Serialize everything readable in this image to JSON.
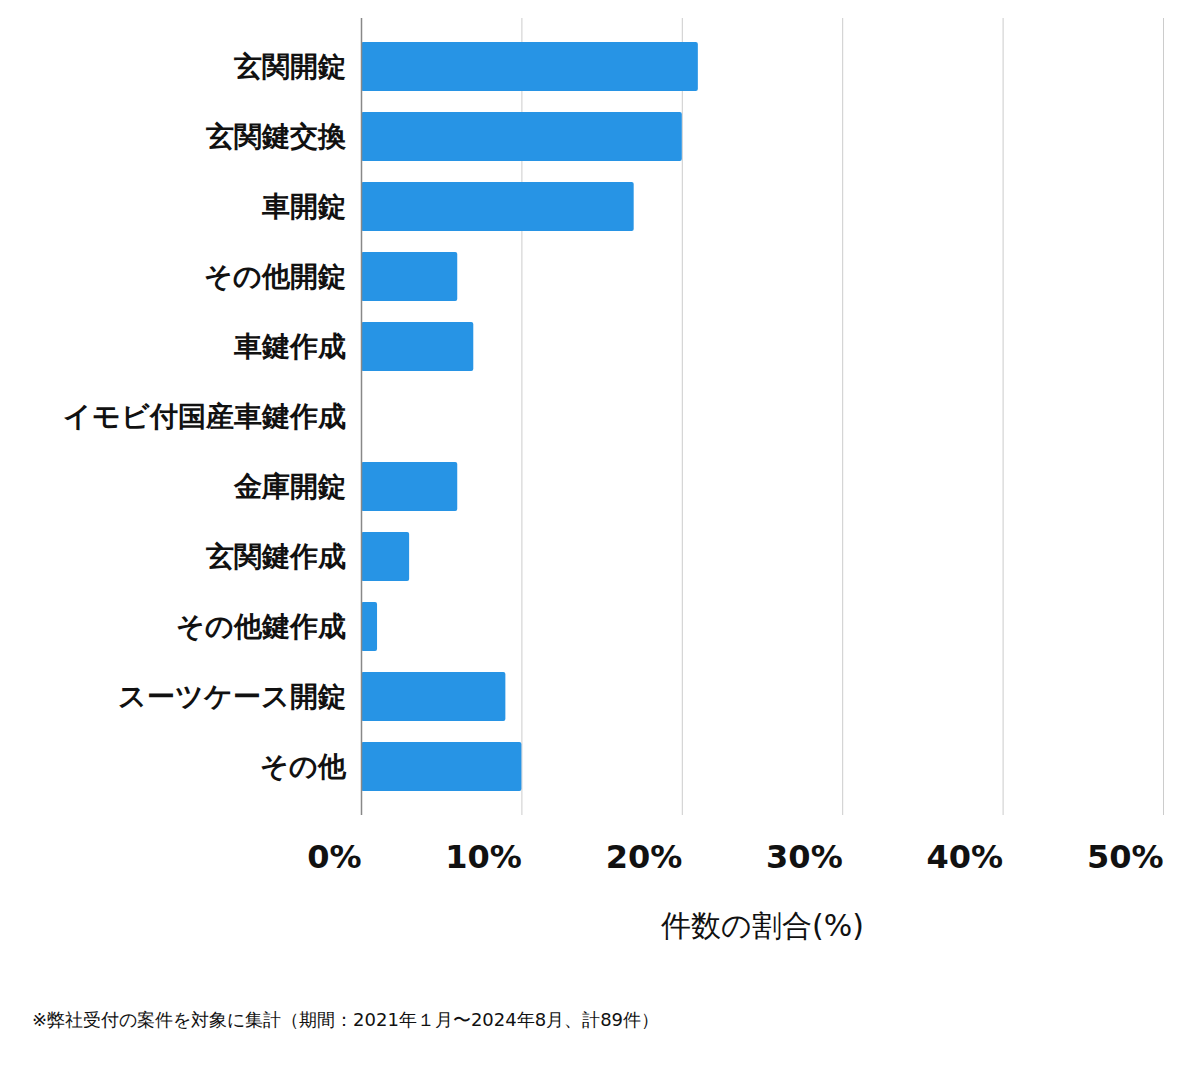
{
  "chart_data": {
    "type": "bar",
    "orientation": "horizontal",
    "categories": [
      "玄関開錠",
      "玄関鍵交換",
      "車開錠",
      "その他開錠",
      "車鍵作成",
      "イモビ付国産車鍵作成",
      "金庫開錠",
      "玄関鍵作成",
      "その他鍵作成",
      "スーツケース開錠",
      "その他"
    ],
    "values": [
      21,
      20,
      17,
      6,
      7,
      0,
      6,
      3,
      1,
      9,
      10
    ],
    "color": "#2794e5",
    "x_label": "件数の割合(%)",
    "xlim": [
      0,
      50
    ],
    "xticks": [
      {
        "value": 0,
        "label": "0%"
      },
      {
        "value": 10,
        "label": "10%"
      },
      {
        "value": 20,
        "label": "20%"
      },
      {
        "value": 30,
        "label": "30%"
      },
      {
        "value": 40,
        "label": "40%"
      },
      {
        "value": 50,
        "label": "50%"
      }
    ],
    "grid": true,
    "footnote": "※弊社受付の案件を対象に集計（期間：2021年１月〜2024年8月、計89件）"
  }
}
